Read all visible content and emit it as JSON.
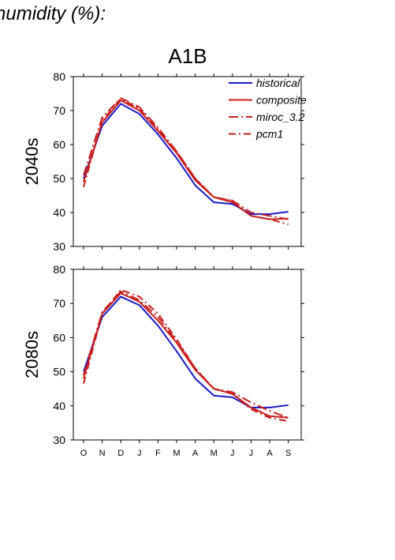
{
  "header": {
    "text": "humidity (%):"
  },
  "title": "A1B",
  "legend": {
    "position": "top-right",
    "entries": [
      {
        "label": "historical",
        "color": "#1a1ac8",
        "dash": "solid"
      },
      {
        "label": "composite",
        "color": "#c81e1e",
        "dash": "solid"
      },
      {
        "label": "miroc_3.2",
        "color": "#c81e1e",
        "dash": "dash-dot"
      },
      {
        "label": "pcm1",
        "color": "#c81e1e",
        "dash": "long-dash-dot"
      }
    ]
  },
  "chart_data": [
    {
      "type": "line",
      "title": "A1B",
      "ylabel": "2040s",
      "categories": [
        "O",
        "N",
        "D",
        "J",
        "F",
        "M",
        "A",
        "M",
        "J",
        "J",
        "A",
        "S"
      ],
      "ylim": [
        30,
        80
      ],
      "yticks": [
        30,
        40,
        50,
        60,
        70,
        80
      ],
      "series": [
        {
          "name": "historical",
          "color": "#1a1ac8",
          "dash": "solid",
          "values": [
            50,
            65.5,
            72,
            69,
            63,
            56,
            48,
            43,
            42.5,
            39.5,
            39.5,
            40.2
          ]
        },
        {
          "name": "composite",
          "color": "#c81e1e",
          "dash": "solid",
          "values": [
            49,
            66.5,
            73,
            70,
            64,
            57.5,
            49.5,
            44.5,
            43,
            39,
            38,
            38.2
          ]
        },
        {
          "name": "miroc_3.2",
          "color": "#c81e1e",
          "dash": "dash-dot",
          "values": [
            51,
            68,
            73.7,
            71,
            65,
            58,
            50,
            44.5,
            43.5,
            40,
            39,
            38
          ]
        },
        {
          "name": "pcm1",
          "color": "#c81e1e",
          "dash": "long-dash-dot",
          "values": [
            47.5,
            67,
            73.5,
            70.5,
            64.5,
            58,
            50,
            44.5,
            43.5,
            39,
            38,
            36.5
          ]
        }
      ]
    },
    {
      "type": "line",
      "ylabel": "2080s",
      "categories": [
        "O",
        "N",
        "D",
        "J",
        "F",
        "M",
        "A",
        "M",
        "J",
        "J",
        "A",
        "S"
      ],
      "ylim": [
        30,
        80
      ],
      "yticks": [
        30,
        40,
        50,
        60,
        70,
        80
      ],
      "series": [
        {
          "name": "historical",
          "color": "#1a1ac8",
          "dash": "solid",
          "values": [
            50,
            66,
            72,
            69.5,
            63.5,
            56,
            48,
            43,
            42.5,
            39.5,
            39.5,
            40.2
          ]
        },
        {
          "name": "composite",
          "color": "#c81e1e",
          "dash": "solid",
          "values": [
            48,
            67,
            73,
            70.5,
            65,
            58.5,
            50.5,
            45,
            43.5,
            39.5,
            37,
            36.5
          ]
        },
        {
          "name": "miroc_3.2",
          "color": "#c81e1e",
          "dash": "dash-dot",
          "values": [
            49,
            67.5,
            73.5,
            71,
            66,
            59,
            51,
            45,
            44,
            41,
            38.5,
            36.5
          ]
        },
        {
          "name": "pcm1",
          "color": "#c81e1e",
          "dash": "long-dash-dot",
          "values": [
            46.5,
            67,
            74,
            72,
            67,
            59.5,
            51,
            45,
            43.5,
            39,
            36.5,
            35.5
          ]
        }
      ]
    }
  ]
}
